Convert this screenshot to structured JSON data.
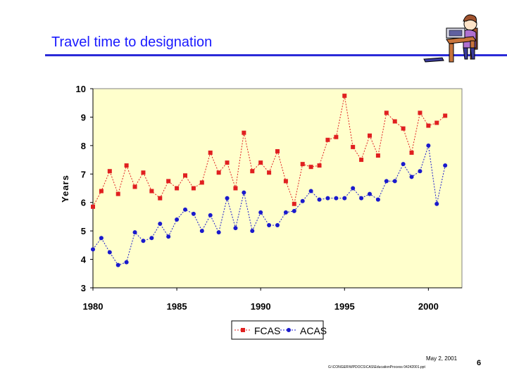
{
  "slide": {
    "title": "Travel time to designation",
    "footer_date": "May 2, 2001",
    "footer_path": "G:\\CONGER\\WPDOCS\\CAS\\EducationProcess 04242001.ppt",
    "page_number": "6"
  },
  "icons": {
    "clipart": "student-at-computer-icon"
  },
  "colors": {
    "title": "#1a1aff",
    "rule": "#2a2ad8",
    "plot_background": "#ffffcc",
    "fcas": "#e02020",
    "acas": "#1a1acc"
  },
  "chart_data": {
    "type": "line",
    "title": "",
    "xlabel": "",
    "ylabel": "Years",
    "xlim": [
      1980,
      2002
    ],
    "ylim": [
      3,
      10
    ],
    "xticks": [
      1980,
      1985,
      1990,
      1995,
      2000
    ],
    "yticks": [
      3,
      4,
      5,
      6,
      7,
      8,
      9,
      10
    ],
    "grid": false,
    "legend_position": "bottom",
    "series": [
      {
        "name": "FCAS",
        "marker": "square",
        "points": [
          [
            1980,
            5.85
          ],
          [
            1980.5,
            6.4
          ],
          [
            1981,
            7.1
          ],
          [
            1981.5,
            6.3
          ],
          [
            1982,
            7.3
          ],
          [
            1982.5,
            6.55
          ],
          [
            1983,
            7.05
          ],
          [
            1983.5,
            6.4
          ],
          [
            1984,
            6.15
          ],
          [
            1984.5,
            6.75
          ],
          [
            1985,
            6.5
          ],
          [
            1985.5,
            6.95
          ],
          [
            1986,
            6.5
          ],
          [
            1986.5,
            6.7
          ],
          [
            1987,
            7.75
          ],
          [
            1987.5,
            7.05
          ],
          [
            1988,
            7.4
          ],
          [
            1988.5,
            6.5
          ],
          [
            1989,
            8.45
          ],
          [
            1989.5,
            7.1
          ],
          [
            1990,
            7.4
          ],
          [
            1990.5,
            7.05
          ],
          [
            1991,
            7.8
          ],
          [
            1991.5,
            6.75
          ],
          [
            1992,
            5.95
          ],
          [
            1992.5,
            7.35
          ],
          [
            1993,
            7.25
          ],
          [
            1993.5,
            7.3
          ],
          [
            1994,
            8.2
          ],
          [
            1994.5,
            8.3
          ],
          [
            1995,
            9.75
          ],
          [
            1995.5,
            7.95
          ],
          [
            1996,
            7.5
          ],
          [
            1996.5,
            8.35
          ],
          [
            1997,
            7.65
          ],
          [
            1997.5,
            9.15
          ],
          [
            1998,
            8.85
          ],
          [
            1998.5,
            8.6
          ],
          [
            1999,
            7.75
          ],
          [
            1999.5,
            9.15
          ],
          [
            2000,
            8.7
          ],
          [
            2000.5,
            8.8
          ],
          [
            2001,
            9.05
          ]
        ]
      },
      {
        "name": "ACAS",
        "marker": "circle",
        "points": [
          [
            1980,
            4.35
          ],
          [
            1980.5,
            4.75
          ],
          [
            1981,
            4.25
          ],
          [
            1981.5,
            3.8
          ],
          [
            1982,
            3.9
          ],
          [
            1982.5,
            4.95
          ],
          [
            1983,
            4.65
          ],
          [
            1983.5,
            4.75
          ],
          [
            1984,
            5.25
          ],
          [
            1984.5,
            4.8
          ],
          [
            1985,
            5.4
          ],
          [
            1985.5,
            5.75
          ],
          [
            1986,
            5.6
          ],
          [
            1986.5,
            5.0
          ],
          [
            1987,
            5.55
          ],
          [
            1987.5,
            4.95
          ],
          [
            1988,
            6.15
          ],
          [
            1988.5,
            5.1
          ],
          [
            1989,
            6.35
          ],
          [
            1989.5,
            5.0
          ],
          [
            1990,
            5.65
          ],
          [
            1990.5,
            5.2
          ],
          [
            1991,
            5.2
          ],
          [
            1991.5,
            5.65
          ],
          [
            1992,
            5.7
          ],
          [
            1992.5,
            6.05
          ],
          [
            1993,
            6.4
          ],
          [
            1993.5,
            6.1
          ],
          [
            1994,
            6.15
          ],
          [
            1994.5,
            6.15
          ],
          [
            1995,
            6.15
          ],
          [
            1995.5,
            6.5
          ],
          [
            1996,
            6.15
          ],
          [
            1996.5,
            6.3
          ],
          [
            1997,
            6.1
          ],
          [
            1997.5,
            6.75
          ],
          [
            1998,
            6.75
          ],
          [
            1998.5,
            7.35
          ],
          [
            1999,
            6.9
          ],
          [
            1999.5,
            7.1
          ],
          [
            2000,
            8.0
          ],
          [
            2000.5,
            5.95
          ],
          [
            2001,
            7.3
          ]
        ]
      }
    ]
  }
}
